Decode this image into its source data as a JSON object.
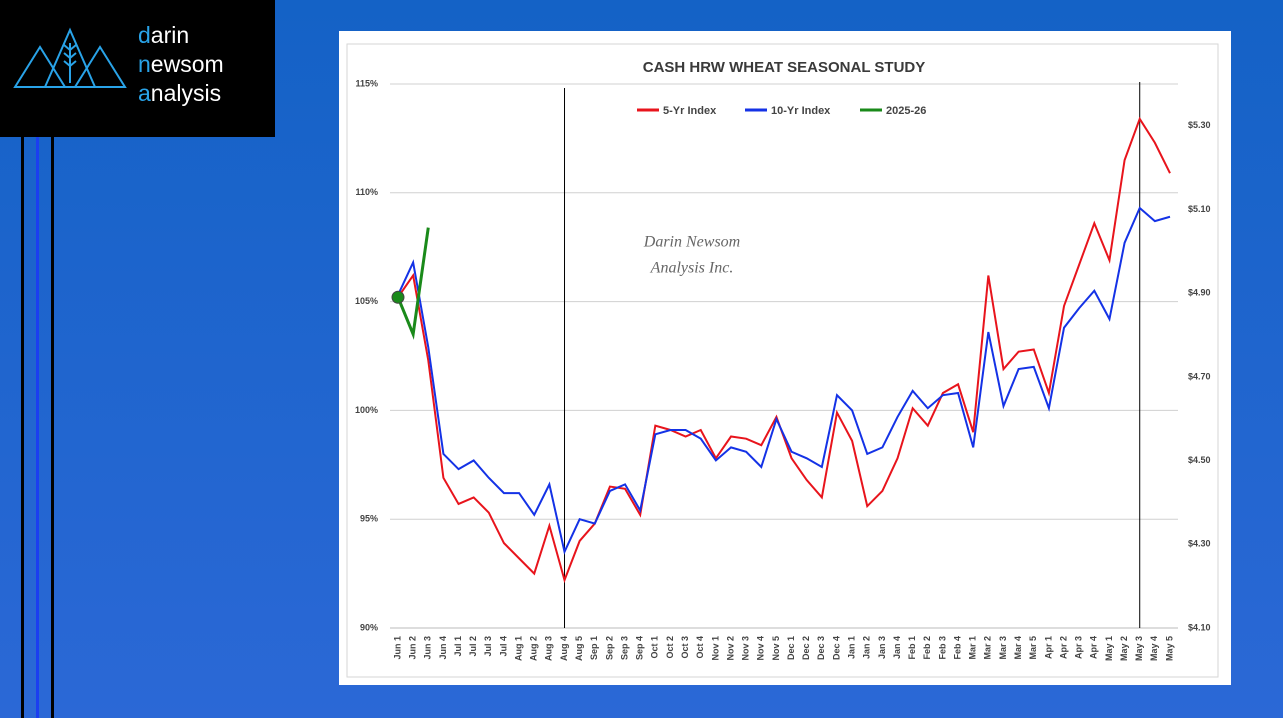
{
  "logo": [
    "darin",
    "newsom",
    "analysis"
  ],
  "chart_data": {
    "type": "line",
    "title": "CASH HRW WHEAT SEASONAL STUDY",
    "watermark": [
      "Darin Newsom",
      "Analysis Inc."
    ],
    "categories": [
      "Jun 1",
      "Jun 2",
      "Jun 3",
      "Jun 4",
      "Jul 1",
      "Jul 2",
      "Jul 3",
      "Jul 4",
      "Aug 1",
      "Aug 2",
      "Aug 3",
      "Aug 4",
      "Aug 5",
      "Sep 1",
      "Sep 2",
      "Sep 3",
      "Sep 4",
      "Oct 1",
      "Oct 2",
      "Oct 3",
      "Oct 4",
      "Nov 1",
      "Nov 2",
      "Nov 3",
      "Nov 4",
      "Nov 5",
      "Dec 1",
      "Dec 2",
      "Dec 3",
      "Dec 4",
      "Jan 1",
      "Jan 2",
      "Jan 3",
      "Jan 4",
      "Feb 1",
      "Feb 2",
      "Feb 3",
      "Feb 4",
      "Mar 1",
      "Mar 2",
      "Mar 3",
      "Mar 4",
      "Mar 5",
      "Apr 1",
      "Apr 2",
      "Apr 3",
      "Apr 4",
      "May 1",
      "May 2",
      "May 3",
      "May 4",
      "May 5"
    ],
    "series": [
      {
        "name": "5-Yr Index",
        "color": "#e8141c",
        "values": [
          105.2,
          106.2,
          102.3,
          96.9,
          95.7,
          96.0,
          95.3,
          93.9,
          93.2,
          92.5,
          94.7,
          92.2,
          94.0,
          94.8,
          96.5,
          96.4,
          95.2,
          99.3,
          99.1,
          98.8,
          99.1,
          97.8,
          98.8,
          98.7,
          98.4,
          99.7,
          97.8,
          96.8,
          96.0,
          99.9,
          98.6,
          95.6,
          96.3,
          97.8,
          100.1,
          99.3,
          100.8,
          101.2,
          99.0,
          106.2,
          101.9,
          102.7,
          102.8,
          100.8,
          104.8,
          106.7,
          108.6,
          106.9,
          111.5,
          113.4,
          112.3,
          110.9
        ]
      },
      {
        "name": "10-Yr Index",
        "color": "#1432e6",
        "values": [
          105.3,
          106.8,
          102.9,
          98.0,
          97.3,
          97.7,
          96.9,
          96.2,
          96.2,
          95.2,
          96.6,
          93.5,
          95.0,
          94.8,
          96.3,
          96.6,
          95.4,
          98.9,
          99.1,
          99.1,
          98.7,
          97.7,
          98.3,
          98.1,
          97.4,
          99.6,
          98.1,
          97.8,
          97.4,
          100.7,
          100.0,
          98.0,
          98.3,
          99.7,
          100.9,
          100.1,
          100.7,
          100.8,
          98.3,
          103.6,
          100.2,
          101.9,
          102.0,
          100.1,
          103.8,
          104.7,
          105.5,
          104.2,
          107.7,
          109.3,
          108.7,
          108.9
        ]
      },
      {
        "name": "2025-26",
        "color": "#1a8a1a",
        "values": [
          105.2,
          103.5,
          108.4,
          null,
          null,
          null,
          null,
          null,
          null,
          null,
          null,
          null,
          null,
          null,
          null,
          null,
          null,
          null,
          null,
          null,
          null,
          null,
          null,
          null,
          null,
          null,
          null,
          null,
          null,
          null,
          null,
          null,
          null,
          null,
          null,
          null,
          null,
          null,
          null,
          null,
          null,
          null,
          null,
          null,
          null,
          null,
          null,
          null,
          null,
          null,
          null,
          null
        ]
      }
    ],
    "ylim": [
      90,
      115
    ],
    "yticks": [
      {
        "value": 90,
        "label": "90%"
      },
      {
        "value": 95,
        "label": "95%"
      },
      {
        "value": 100,
        "label": "100%"
      },
      {
        "value": 105,
        "label": "105%"
      },
      {
        "value": 110,
        "label": "110%"
      },
      {
        "value": 115,
        "label": "115%"
      }
    ],
    "y2lim": [
      4.1,
      5.4
    ],
    "y2ticks": [
      {
        "value": 4.1,
        "label": "$4.10"
      },
      {
        "value": 4.3,
        "label": "$4.30"
      },
      {
        "value": 4.5,
        "label": "$4.50"
      },
      {
        "value": 4.7,
        "label": "$4.70"
      },
      {
        "value": 4.9,
        "label": "$4.90"
      },
      {
        "value": 5.1,
        "label": "$5.10"
      },
      {
        "value": 5.3,
        "label": "$5.30"
      }
    ],
    "grid": true,
    "legend": "top"
  }
}
